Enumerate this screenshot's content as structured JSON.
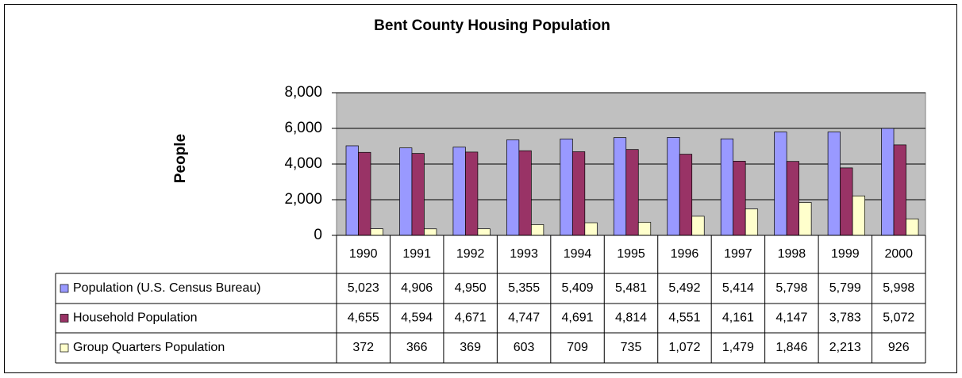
{
  "chart_data": {
    "type": "bar",
    "title": "Bent County Housing Population",
    "y_label": "People",
    "categories": [
      "1990",
      "1991",
      "1992",
      "1993",
      "1994",
      "1995",
      "1996",
      "1997",
      "1998",
      "1999",
      "2000"
    ],
    "series": [
      {
        "name": "Population (U.S. Census Bureau)",
        "color": "#9999ff",
        "values": [
          5023,
          4906,
          4950,
          5355,
          5409,
          5481,
          5492,
          5414,
          5798,
          5799,
          5998
        ],
        "value_labels": [
          "5,023",
          "4,906",
          "4,950",
          "5,355",
          "5,409",
          "5,481",
          "5,492",
          "5,414",
          "5,798",
          "5,799",
          "5,998"
        ]
      },
      {
        "name": "Household Population",
        "color": "#993366",
        "values": [
          4655,
          4594,
          4671,
          4747,
          4691,
          4814,
          4551,
          4161,
          4147,
          3783,
          5072
        ],
        "value_labels": [
          "4,655",
          "4,594",
          "4,671",
          "4,747",
          "4,691",
          "4,814",
          "4,551",
          "4,161",
          "4,147",
          "3,783",
          "5,072"
        ]
      },
      {
        "name": "Group Quarters Population",
        "color": "#ffffcc",
        "values": [
          372,
          366,
          369,
          603,
          709,
          735,
          1072,
          1479,
          1846,
          2213,
          926
        ],
        "value_labels": [
          "372",
          "366",
          "369",
          "603",
          "709",
          "735",
          "1,072",
          "1,479",
          "1,846",
          "2,213",
          "926"
        ]
      }
    ],
    "ylim": [
      0,
      8000
    ],
    "yticks": [
      0,
      {
        "value": 2000,
        "label": "2,000"
      },
      {
        "value": 4000,
        "label": "4,000"
      },
      {
        "value": 6000,
        "label": "6,000"
      },
      {
        "value": 8000,
        "label": "8,000"
      }
    ],
    "grid": true
  }
}
